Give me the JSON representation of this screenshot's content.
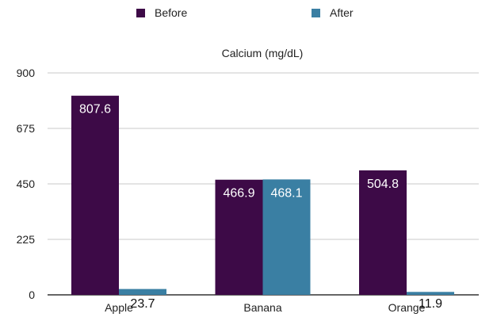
{
  "chart_data": {
    "type": "bar",
    "title": "Calcium (mg/dL)",
    "xlabel": "",
    "ylabel": "",
    "categories": [
      "Apple",
      "Banana",
      "Orange"
    ],
    "series": [
      {
        "name": "Before",
        "color": "#3d0a47",
        "values": [
          807.6,
          466.9,
          504.8
        ]
      },
      {
        "name": "After",
        "color": "#3a7fa3",
        "values": [
          23.7,
          468.1,
          11.9
        ]
      }
    ],
    "ylim": [
      0,
      900
    ],
    "yticks": [
      "0",
      "225",
      "450",
      "675",
      "900"
    ],
    "grid": true,
    "legend": "top"
  }
}
